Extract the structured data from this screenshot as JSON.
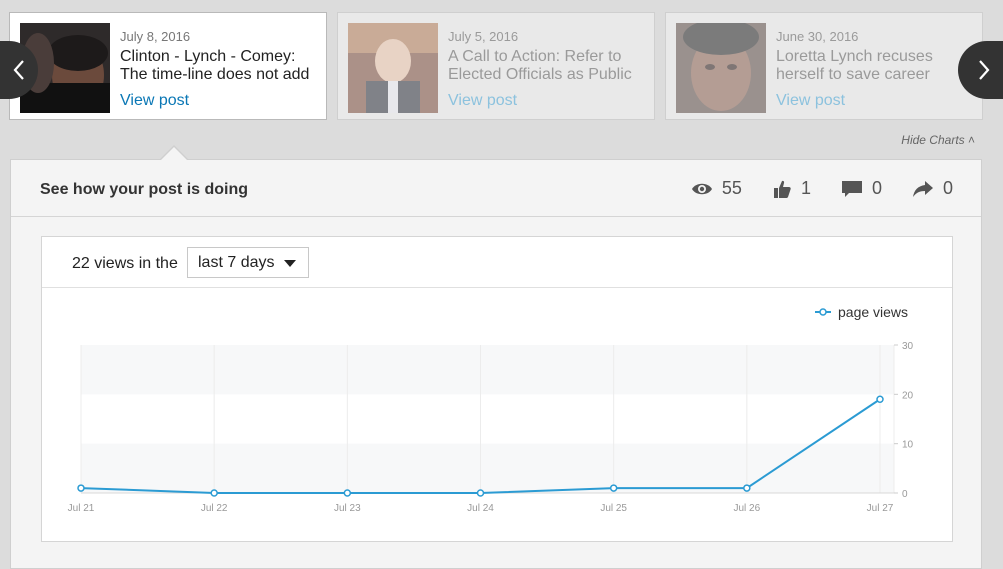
{
  "carousel": {
    "prev_icon": "chevron-left-icon",
    "next_icon": "chevron-right-icon",
    "posts": [
      {
        "date": "July 8, 2016",
        "title": "Clinton - Lynch - Comey: The time-line does not add",
        "link": "View post"
      },
      {
        "date": "July 5, 2016",
        "title": "A Call to Action: Refer to Elected Officials as Public",
        "link": "View post"
      },
      {
        "date": "June 30, 2016",
        "title": "Loretta Lynch recuses herself to save career",
        "link": "View post"
      }
    ],
    "hide_charts": "Hide Charts ˄"
  },
  "panel": {
    "title": "See how your post is doing",
    "stats": {
      "views": "55",
      "likes": "1",
      "comments": "0",
      "shares": "0"
    }
  },
  "chart_header": {
    "views_text": "22 views in the",
    "range_selected": "last 7 days"
  },
  "chart_data": {
    "type": "line",
    "legend": "page views",
    "legend_position": "top-right",
    "x": [
      "Jul 21",
      "Jul 22",
      "Jul 23",
      "Jul 24",
      "Jul 25",
      "Jul 26",
      "Jul 27"
    ],
    "series": [
      {
        "name": "page views",
        "values": [
          1,
          0,
          0,
          0,
          1,
          1,
          19
        ],
        "color": "#2b9bd3"
      }
    ],
    "ylim": [
      0,
      30
    ],
    "yticks": [
      "0",
      "10",
      "20",
      "30"
    ],
    "grid": true
  }
}
